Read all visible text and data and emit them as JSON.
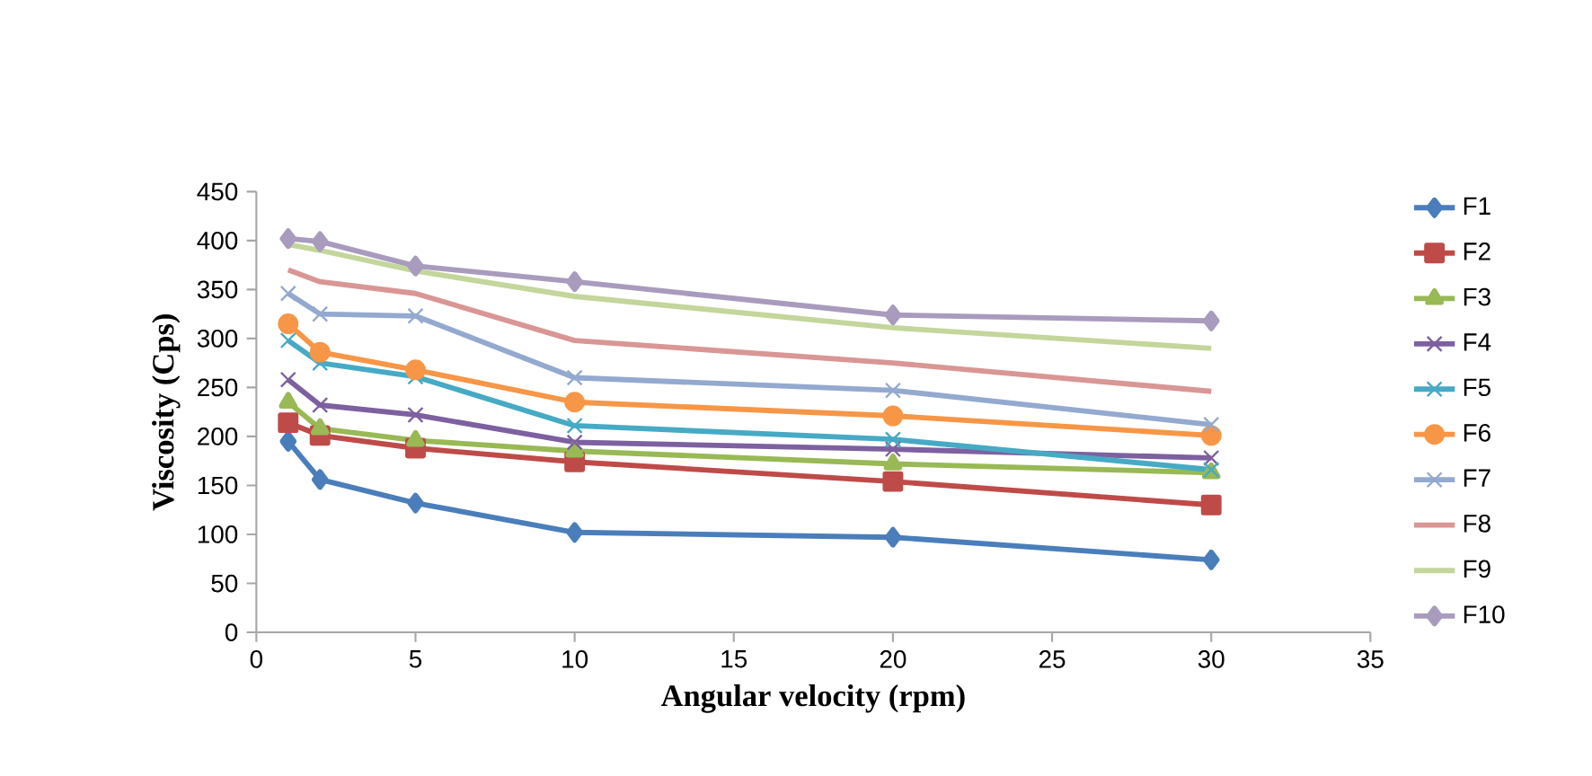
{
  "chart_data": {
    "type": "line",
    "xlabel": "Angular velocity (rpm)",
    "ylabel": "Viscosity (Cps)",
    "x": [
      1,
      2,
      5,
      10,
      20,
      30
    ],
    "xlim": [
      0,
      35
    ],
    "xticks": [
      0,
      5,
      10,
      15,
      20,
      25,
      30,
      35
    ],
    "ylim": [
      0,
      450
    ],
    "yticks": [
      0,
      50,
      100,
      150,
      200,
      250,
      300,
      350,
      400,
      450
    ],
    "grid": false,
    "legend": "right",
    "line_style": "solid",
    "series": [
      {
        "name": "F1",
        "color": "#4a7ebb",
        "marker": "diamond",
        "values": [
          195,
          156,
          132,
          102,
          97,
          74
        ]
      },
      {
        "name": "F2",
        "color": "#be4b48",
        "marker": "square",
        "values": [
          214,
          201,
          188,
          174,
          154,
          130
        ]
      },
      {
        "name": "F3",
        "color": "#98b954",
        "marker": "triangle",
        "values": [
          235,
          208,
          196,
          185,
          172,
          163
        ]
      },
      {
        "name": "F4",
        "color": "#7d60a0",
        "marker": "cross",
        "values": [
          258,
          232,
          222,
          194,
          187,
          178
        ]
      },
      {
        "name": "F5",
        "color": "#46aac5",
        "marker": "cross",
        "values": [
          298,
          275,
          261,
          211,
          197,
          166
        ]
      },
      {
        "name": "F6",
        "color": "#f79646",
        "marker": "circle",
        "values": [
          315,
          286,
          268,
          235,
          221,
          201
        ]
      },
      {
        "name": "F7",
        "color": "#93a9cf",
        "marker": "cross",
        "values": [
          346,
          325,
          323,
          260,
          247,
          212
        ]
      },
      {
        "name": "F8",
        "color": "#d99694",
        "marker": "none",
        "values": [
          370,
          358,
          346,
          298,
          275,
          246
        ]
      },
      {
        "name": "F9",
        "color": "#c3d69b",
        "marker": "none",
        "values": [
          396,
          390,
          369,
          343,
          311,
          290
        ]
      },
      {
        "name": "F10",
        "color": "#a99bbd",
        "marker": "diamond",
        "values": [
          402,
          399,
          374,
          358,
          324,
          318
        ]
      }
    ]
  }
}
